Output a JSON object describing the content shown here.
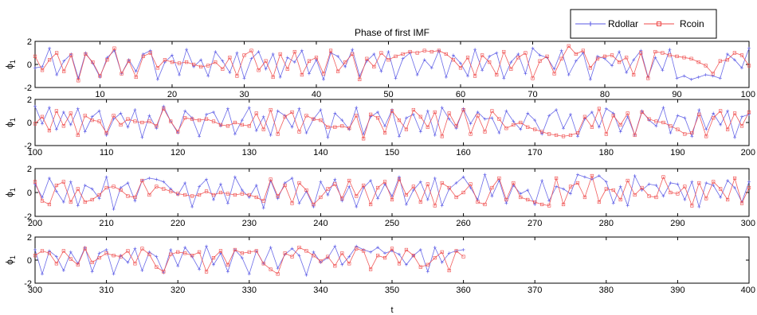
{
  "chart_data": {
    "type": "line",
    "title": "Phase of first IMF",
    "xlabel": "t",
    "ylabel_base": "ϕ",
    "ylabel_sub": "1",
    "ylim": [
      -2,
      2
    ],
    "yticks": [
      "2",
      "0",
      "-2"
    ],
    "legend": {
      "placement": "top-right",
      "entries": [
        "Rdollar",
        "Rcoin"
      ]
    },
    "colors": {
      "Rdollar": "#5a5ae6",
      "Rcoin": "#ef4a4a"
    },
    "markers": {
      "Rdollar": "plus",
      "Rcoin": "square"
    },
    "grid": false,
    "panels": [
      {
        "xlim": [
          1,
          100
        ],
        "xticks": [
          "10",
          "20",
          "30",
          "40",
          "50",
          "60",
          "70",
          "80",
          "90",
          "100"
        ]
      },
      {
        "xlim": [
          100,
          200
        ],
        "xticks": [
          "100",
          "110",
          "120",
          "130",
          "140",
          "150",
          "160",
          "170",
          "180",
          "190",
          "200"
        ]
      },
      {
        "xlim": [
          200,
          300
        ],
        "xticks": [
          "200",
          "210",
          "220",
          "230",
          "240",
          "250",
          "260",
          "270",
          "280",
          "290",
          "300"
        ]
      },
      {
        "xlim": [
          300,
          400
        ],
        "xticks": [
          "300",
          "310",
          "320",
          "330",
          "340",
          "350",
          "360",
          "370",
          "380",
          "390",
          "400"
        ]
      }
    ],
    "series": [
      {
        "name": "Rdollar",
        "x_start": 1,
        "values": [
          -0.3,
          -0.2,
          1.4,
          -0.9,
          0.3,
          0.9,
          -1.2,
          1.0,
          0.1,
          -1.1,
          0.6,
          1.2,
          -0.8,
          0.4,
          -0.6,
          0.9,
          1.2,
          -1.3,
          0.2,
          0.8,
          -0.9,
          1.3,
          -0.2,
          0.4,
          -1.0,
          1.1,
          0.3,
          -0.7,
          1.0,
          -1.2,
          0.5,
          1.1,
          -0.4,
          0.9,
          -1.1,
          0.6,
          0.2,
          1.2,
          -0.8,
          0.4,
          -1.3,
          1.0,
          0.7,
          -0.2,
          1.3,
          -1.0,
          0.3,
          0.9,
          -0.6,
          1.1,
          -1.2,
          0.5,
          1.0,
          -0.9,
          0.4,
          -0.3,
          1.2,
          -1.1,
          0.8,
          0.1,
          -1.0,
          1.3,
          -0.5,
          0.7,
          1.0,
          -1.2,
          0.2,
          0.9,
          -0.8,
          1.4,
          0.8,
          0.6,
          -0.4,
          1.2,
          -0.9,
          0.3,
          1.0,
          -1.3,
          0.7,
          0.5,
          -0.1,
          1.1,
          -0.7,
          0.4,
          1.2,
          -1.1,
          0.6,
          -0.5,
          1.3,
          -1.2,
          -1.0,
          -1.3,
          -1.1,
          -0.9,
          -1.0,
          -1.2,
          0.9,
          0.4,
          -0.3,
          1.4,
          -0.1,
          1.3,
          -0.6,
          0.9,
          -0.2,
          1.2,
          -0.8,
          0.5,
          1.0,
          -1.1,
          0.3,
          0.8,
          -0.4,
          1.1,
          -1.3,
          0.6,
          -0.5,
          1.4,
          0.1,
          -0.9,
          1.0,
          0.4,
          -1.2,
          0.7,
          0.9,
          -0.3,
          1.2,
          -1.0,
          0.2,
          1.3,
          -0.7,
          0.5,
          -1.1,
          1.0,
          0.6,
          -0.4,
          1.2,
          -0.9,
          0.3,
          1.1,
          -1.3,
          0.8,
          0.2,
          -0.6,
          1.3,
          -1.0,
          0.5,
          0.9,
          -0.3,
          1.1,
          -1.2,
          0.4,
          0.7,
          -0.8,
          1.0,
          -1.1,
          1.3,
          0.3,
          -0.5,
          1.2,
          -0.1,
          0.9,
          0.3,
          0.4,
          -0.9,
          1.0,
          0.1,
          -0.6,
          0.8,
          0.2,
          -1.0,
          0.6,
          1.1,
          -0.5,
          0.7,
          -1.2,
          0.3,
          0.9,
          -0.4,
          1.2,
          0.8,
          -0.8,
          0.5,
          -1.1,
          1.0,
          0.2,
          -0.3,
          1.3,
          -0.9,
          0.6,
          0.4,
          -1.2,
          1.1,
          -0.6,
          0.8,
          -0.2,
          1.0,
          -1.3,
          0.5,
          0.7,
          -0.4,
          1.2,
          0.1,
          -0.8,
          0.9,
          -1.1,
          0.6,
          0.3,
          -0.5,
          1.3,
          -1.4,
          0.4,
          0.8,
          -0.7,
          1.0,
          1.2,
          1.1,
          0.9,
          0.3,
          -0.2,
          0.8,
          -1.2,
          0.5,
          1.1,
          -0.6,
          0.7,
          -0.9,
          1.3,
          0.2,
          -0.4,
          0.6,
          -1.3,
          1.0,
          -0.5,
          0.8,
          1.2,
          -0.9,
          0.1,
          -1.2,
          0.9,
          -0.2,
          1.1,
          -0.7,
          0.5,
          -1.2,
          0.4,
          1.0,
          -0.5,
          0.7,
          -0.3,
          1.3,
          -1.0,
          0.2,
          0.9,
          -0.6,
          1.2,
          -1.1,
          0.3,
          0.8,
          1.3,
          0.4,
          -0.6,
          1.5,
          -0.3,
          1.0,
          -0.9,
          0.6,
          -0.1,
          0.2,
          -1.0,
          1.0,
          -0.7,
          0.5,
          0.3,
          -0.1,
          1.5,
          1.3,
          1.1,
          1.4,
          0.9,
          -0.9,
          0.5,
          -1.1,
          1.4,
          0.2,
          0.7,
          0.6,
          -0.3,
          0.8,
          0.7,
          -0.6,
          0.9,
          -1.2,
          0.8,
          0.6,
          -0.4,
          1.0,
          0.4,
          -0.8,
          0.9,
          -1.2,
          0.8,
          0.3,
          -0.9,
          0.7,
          -0.3,
          1.1,
          -1.0,
          0.6,
          0.9,
          -1.2,
          0.4,
          -0.2,
          1.0,
          -0.9,
          0.7,
          0.3,
          -1.1,
          0.9,
          -0.5,
          1.1,
          0.3,
          -0.8,
          1.2,
          -0.4,
          0.6,
          -1.0,
          0.9,
          0.2,
          -1.2,
          0.8,
          -0.3,
          1.1,
          -0.7,
          0.5,
          1.0,
          0.4,
          -1.3,
          0.7,
          -0.2,
          0.2,
          1.2,
          -0.4,
          0.3,
          1.2,
          0.9,
          0.7,
          1.1,
          0.6,
          0.8,
          0.5,
          -0.4,
          0.4,
          0.9,
          -1.0,
          1.1,
          -0.2,
          0.6,
          0.8,
          0.9
        ]
      },
      {
        "name": "Rcoin",
        "x_start": 1,
        "values": [
          0.7,
          -0.5,
          0.4,
          1.0,
          -0.6,
          0.8,
          -1.4,
          0.9,
          0.2,
          -1.0,
          0.4,
          1.4,
          -0.8,
          0.3,
          -1.1,
          0.7,
          1.0,
          -0.3,
          0.4,
          0.2,
          0.1,
          0.2,
          0.0,
          -0.2,
          -0.1,
          0.2,
          -0.4,
          0.6,
          -1.0,
          0.8,
          1.2,
          -0.5,
          0.3,
          -1.1,
          0.9,
          -0.4,
          1.1,
          -0.9,
          0.3,
          0.6,
          -0.8,
          1.2,
          -0.6,
          0.2,
          0.9,
          -1.3,
          0.5,
          -0.2,
          1.0,
          0.4,
          0.7,
          0.9,
          1.1,
          1.0,
          1.2,
          1.1,
          1.2,
          0.9,
          0.4,
          -0.3,
          0.6,
          -1.0,
          0.8,
          0.2,
          -0.9,
          1.1,
          -0.4,
          0.6,
          1.0,
          -1.2,
          0.3,
          0.7,
          -0.8,
          0.5,
          1.6,
          0.9,
          1.2,
          -0.3,
          0.5,
          0.7,
          0.8,
          0.2,
          0.6,
          -0.9,
          1.0,
          -1.2,
          1.1,
          1.0,
          0.8,
          0.7,
          0.6,
          0.5,
          0.2,
          -0.1,
          -0.8,
          0.3,
          0.4,
          1.0,
          0.8,
          -0.1,
          0.5,
          -0.7,
          1.0,
          -0.3,
          0.8,
          -1.1,
          0.6,
          0.2,
          0.1,
          -0.9,
          0.6,
          -0.2,
          0.3,
          0.1,
          0.0,
          0.1,
          -0.3,
          1.2,
          0.1,
          -0.8,
          0.4,
          0.3,
          0.2,
          0.3,
          0.1,
          -0.2,
          -0.3,
          0.0,
          -0.2,
          -0.3,
          0.8,
          -0.6,
          1.1,
          -1.0,
          0.5,
          0.9,
          -0.8,
          0.6,
          0.3,
          0.2,
          -0.4,
          -0.4,
          -0.3,
          -0.5,
          0.6,
          -1.4,
          0.7,
          0.4,
          -0.9,
          1.0,
          0.2,
          -0.6,
          1.1,
          0.5,
          -0.4,
          0.9,
          -1.2,
          0.8,
          -0.3,
          1.1,
          -1.0,
          0.6,
          -0.8,
          1.0,
          0.3,
          -0.5,
          -0.2,
          0.0,
          -0.4,
          -0.6,
          -0.8,
          -1.0,
          -1.1,
          -1.2,
          -1.1,
          -0.9,
          0.5,
          -0.4,
          1.2,
          -1.0,
          0.6,
          -0.2,
          0.8,
          -1.1,
          0.9,
          0.3,
          0.1,
          0.0,
          -0.3,
          -0.6,
          -1.0,
          -0.9,
          0.7,
          -1.2,
          0.4,
          1.0,
          -0.6,
          0.8,
          -0.3,
          0.9,
          -0.7,
          -1.0,
          0.6,
          0.9,
          -0.8,
          0.3,
          -0.8,
          -0.6,
          -0.2,
          0.4,
          0.5,
          0.2,
          -0.3,
          -0.4,
          1.0,
          -0.2,
          0.5,
          0.3,
          0.1,
          -0.1,
          -0.2,
          -0.3,
          -0.2,
          0.1,
          -0.2,
          0.0,
          -0.1,
          -0.2,
          -0.1,
          -0.2,
          -0.4,
          -0.7,
          1.1,
          -0.3,
          0.6,
          -0.9,
          0.8,
          0.2,
          -1.0,
          -0.4,
          0.3,
          0.7,
          -0.5,
          1.0,
          -0.3,
          0.6,
          -1.0,
          0.4,
          0.9,
          -0.6,
          1.1,
          -0.2,
          0.5,
          -0.8,
          0.7,
          -1.1,
          0.8,
          0.4,
          -0.4,
          0.0,
          0.7,
          -0.8,
          -1.0,
          0.4,
          1.2,
          -0.6,
          0.8,
          -0.4,
          -0.6,
          -0.8,
          -1.0,
          -1.1,
          1.2,
          -1.0,
          0.5,
          0.8,
          -0.4,
          1.4,
          -0.8,
          0.3,
          0.2,
          -0.6,
          1.0,
          -0.2,
          0.4,
          -0.3,
          -0.4,
          1.3,
          0.0,
          -0.1,
          0.5,
          -1.1,
          0.8,
          -0.5,
          0.9,
          0.3,
          -0.6,
          1.2,
          -0.9,
          0.4,
          0.8,
          0.6,
          -0.3,
          0.8,
          0.1,
          -0.4,
          1.0,
          -0.2,
          0.2,
          0.6,
          0.4,
          0.3,
          0.8,
          -0.3,
          1.0,
          0.5,
          -0.6,
          -1.0,
          0.5,
          0.7,
          0.6,
          0.4,
          0.7,
          -1.0,
          0.2,
          0.8,
          -0.4,
          0.9,
          0.6,
          0.7,
          0.8,
          -0.3,
          -0.8,
          -1.2,
          0.6,
          0.3,
          1.1,
          0.8,
          0.4,
          -0.1,
          0.3,
          -0.5,
          0.6,
          -0.3,
          1.0,
          0.8,
          -0.8,
          0.4,
          0.2,
          1.0,
          -0.3,
          0.9,
          0.4,
          -0.6,
          -0.4,
          0.2,
          0.7,
          -0.9,
          0.8,
          0.3
        ]
      }
    ]
  }
}
